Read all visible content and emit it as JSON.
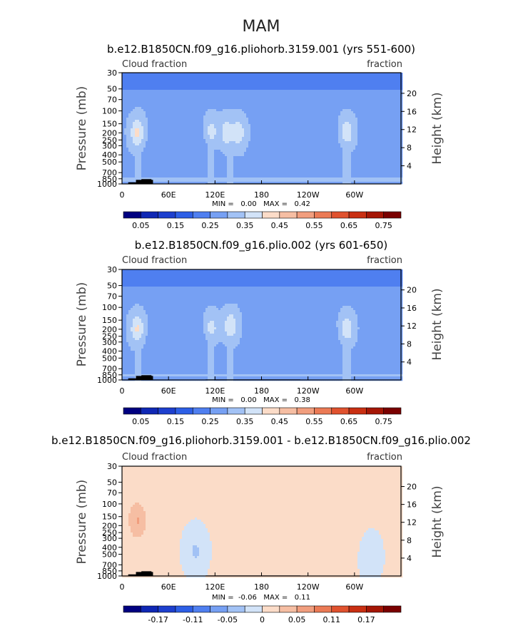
{
  "chart_data": {
    "title": "MAM",
    "panels": [
      {
        "type": "heatmap",
        "subtitle": "b.e12.B1850CN.f09_g16.pliohorb.3159.001 (yrs 551-600)",
        "left_label": "Cloud fraction",
        "right_label": "fraction",
        "ylabel": "Pressure (mb)",
        "ylabel_right": "Height (km)",
        "xticks": [
          "0",
          "60E",
          "120E",
          "180",
          "120W",
          "60W"
        ],
        "yticks": [
          "30",
          "50",
          "70",
          "100",
          "150",
          "200",
          "250",
          "300",
          "400",
          "500",
          "700",
          "850",
          "1000"
        ],
        "yticks_right": [
          "20",
          "16",
          "12",
          "8",
          "4"
        ],
        "stats": "MIN =   0.00   MAX =   0.42",
        "colorbar_labels": [
          "0.05",
          "0.15",
          "0.25",
          "0.35",
          "0.45",
          "0.55",
          "0.65",
          "0.75"
        ],
        "palette": [
          "#000080",
          "#0f27b4",
          "#1d3fce",
          "#2d5fe6",
          "#4f7ff0",
          "#76a0f3",
          "#a2c2f5",
          "#d2e3f8",
          "#fbdcc8",
          "#f6bea3",
          "#f19e7e",
          "#eb7a55",
          "#e0522e",
          "#c92f12",
          "#a51605",
          "#7a0000"
        ],
        "levels": [
          0.05,
          0.15,
          0.25,
          0.35,
          0.45,
          0.55,
          0.65,
          0.75
        ],
        "xlim": [
          0,
          360
        ],
        "ylim": [
          1000,
          30
        ],
        "features": [
          {
            "lon": 20,
            "p": 200,
            "value": 0.4
          },
          {
            "lon": 115,
            "p": 200,
            "value": 0.33
          },
          {
            "lon": 135,
            "p": 200,
            "value": 0.33
          },
          {
            "lon": 150,
            "p": 200,
            "value": 0.33
          },
          {
            "lon": 290,
            "p": 200,
            "value": 0.35
          },
          {
            "lon": 75,
            "p": 350,
            "value": 0.05
          },
          {
            "lon": 240,
            "p": 330,
            "value": 0.05
          }
        ]
      },
      {
        "type": "heatmap",
        "subtitle": "b.e12.B1850CN.f09_g16.plio.002 (yrs 601-650)",
        "left_label": "Cloud fraction",
        "right_label": "fraction",
        "ylabel": "Pressure (mb)",
        "ylabel_right": "Height (km)",
        "xticks": [
          "0",
          "60E",
          "120E",
          "180",
          "120W",
          "60W"
        ],
        "yticks": [
          "30",
          "50",
          "70",
          "100",
          "150",
          "200",
          "250",
          "300",
          "400",
          "500",
          "700",
          "850",
          "1000"
        ],
        "yticks_right": [
          "20",
          "16",
          "12",
          "8",
          "4"
        ],
        "stats": "MIN =   0.00   MAX =   0.38",
        "colorbar_labels": [
          "0.05",
          "0.15",
          "0.25",
          "0.35",
          "0.45",
          "0.55",
          "0.65",
          "0.75"
        ],
        "palette": [
          "#000080",
          "#0f27b4",
          "#1d3fce",
          "#2d5fe6",
          "#4f7ff0",
          "#76a0f3",
          "#a2c2f5",
          "#d2e3f8",
          "#fbdcc8",
          "#f6bea3",
          "#f19e7e",
          "#eb7a55",
          "#e0522e",
          "#c92f12",
          "#a51605",
          "#7a0000"
        ],
        "levels": [
          0.05,
          0.15,
          0.25,
          0.35,
          0.45,
          0.55,
          0.65,
          0.75
        ],
        "xlim": [
          0,
          360
        ],
        "ylim": [
          1000,
          30
        ],
        "features": [
          {
            "lon": 20,
            "p": 200,
            "value": 0.38
          },
          {
            "lon": 115,
            "p": 200,
            "value": 0.33
          },
          {
            "lon": 140,
            "p": 180,
            "value": 0.35
          },
          {
            "lon": 290,
            "p": 200,
            "value": 0.35
          },
          {
            "lon": 75,
            "p": 350,
            "value": 0.05
          },
          {
            "lon": 240,
            "p": 350,
            "value": 0.05
          }
        ]
      },
      {
        "type": "heatmap",
        "subtitle": "b.e12.B1850CN.f09_g16.pliohorb.3159.001 - b.e12.B1850CN.f09_g16.plio.002",
        "left_label": "Cloud fraction",
        "right_label": "fraction",
        "ylabel": "Pressure (mb)",
        "ylabel_right": "Height (km)",
        "xticks": [
          "0",
          "60E",
          "120E",
          "180",
          "120W",
          "60W"
        ],
        "yticks": [
          "30",
          "50",
          "70",
          "100",
          "150",
          "200",
          "250",
          "300",
          "400",
          "500",
          "700",
          "850",
          "1000"
        ],
        "yticks_right": [
          "20",
          "16",
          "12",
          "8",
          "4"
        ],
        "stats": "MIN =  -0.06   MAX =   0.11",
        "colorbar_labels": [
          "-0.17",
          "-0.11",
          "-0.05",
          "0",
          "0.05",
          "0.11",
          "0.17"
        ],
        "palette": [
          "#000080",
          "#0f27b4",
          "#1d3fce",
          "#2d5fe6",
          "#4f7ff0",
          "#76a0f3",
          "#a2c2f5",
          "#d2e3f8",
          "#fbdcc8",
          "#f6bea3",
          "#f19e7e",
          "#eb7a55",
          "#e0522e",
          "#c92f12",
          "#a51605",
          "#7a0000"
        ],
        "levels": [
          -0.17,
          -0.11,
          -0.05,
          0,
          0.05,
          0.11,
          0.17
        ],
        "xlim": [
          0,
          360
        ],
        "ylim": [
          1000,
          30
        ],
        "features": [
          {
            "lon": 20,
            "p": 170,
            "value": 0.11
          },
          {
            "lon": 240,
            "p": 300,
            "value": 0.04
          },
          {
            "lon": 95,
            "p": 450,
            "value": -0.06
          },
          {
            "lon": 320,
            "p": 500,
            "value": -0.05
          }
        ]
      }
    ]
  }
}
